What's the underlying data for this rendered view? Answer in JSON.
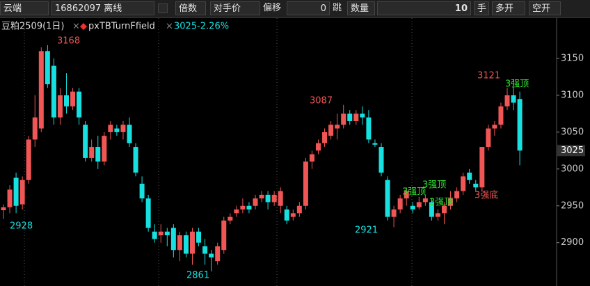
{
  "toolbar": {
    "account": "云端",
    "connection": "16862097 离线",
    "multiple": "倍数",
    "price_mode": "对手价",
    "offset_label": "偏移",
    "offset": "0",
    "offset_unit": "跳",
    "qty_label": "数量",
    "qty": "10",
    "qty_unit": "手",
    "buy_open": "多开",
    "sell_open": "空开"
  },
  "chart_data": {
    "type": "candlestick",
    "symbol": "豆粕2509(1日)",
    "indicator": "pxTBTurnFfield",
    "last_info": "3025-2.26%",
    "current_price": 3025,
    "ylim": [
      2844,
      3201
    ],
    "yticks": [
      2900,
      2950,
      3000,
      3050,
      3100,
      3150
    ],
    "up_color": "#f05656",
    "down_color": "#16e0e0",
    "candles": [
      [
        2944,
        2952,
        2932,
        2948
      ],
      [
        2948,
        2978,
        2940,
        2972
      ],
      [
        2988,
        2995,
        2940,
        2950
      ],
      [
        2952,
        2990,
        2945,
        2985
      ],
      [
        2985,
        3045,
        2980,
        3040
      ],
      [
        3040,
        3100,
        3030,
        3070
      ],
      [
        3055,
        3165,
        3050,
        3160
      ],
      [
        3160,
        3168,
        3110,
        3115
      ],
      [
        3140,
        3150,
        3060,
        3070
      ],
      [
        3070,
        3110,
        3060,
        3100
      ],
      [
        3100,
        3130,
        3075,
        3085
      ],
      [
        3085,
        3110,
        3080,
        3105
      ],
      [
        3105,
        3110,
        3060,
        3070
      ],
      [
        3060,
        3065,
        3010,
        3015
      ],
      [
        3015,
        3040,
        3010,
        3030
      ],
      [
        3030,
        3045,
        3000,
        3010
      ],
      [
        3010,
        3050,
        3005,
        3045
      ],
      [
        3050,
        3065,
        3040,
        3060
      ],
      [
        3055,
        3060,
        3045,
        3050
      ],
      [
        3050,
        3065,
        3040,
        3060
      ],
      [
        3060,
        3070,
        3030,
        3035
      ],
      [
        3030,
        3035,
        2990,
        2995
      ],
      [
        2980,
        2990,
        2955,
        2960
      ],
      [
        2960,
        2965,
        2915,
        2920
      ],
      [
        2915,
        2925,
        2900,
        2905
      ],
      [
        2910,
        2925,
        2900,
        2915
      ],
      [
        2915,
        2920,
        2895,
        2910
      ],
      [
        2920,
        2925,
        2880,
        2890
      ],
      [
        2890,
        2915,
        2875,
        2910
      ],
      [
        2910,
        2915,
        2880,
        2885
      ],
      [
        2885,
        2920,
        2870,
        2915
      ],
      [
        2915,
        2920,
        2895,
        2900
      ],
      [
        2895,
        2905,
        2870,
        2885
      ],
      [
        2885,
        2890,
        2861,
        2880
      ],
      [
        2875,
        2900,
        2870,
        2895
      ],
      [
        2890,
        2935,
        2885,
        2930
      ],
      [
        2930,
        2940,
        2925,
        2935
      ],
      [
        2940,
        2950,
        2935,
        2945
      ],
      [
        2945,
        2960,
        2940,
        2950
      ],
      [
        2950,
        2955,
        2940,
        2945
      ],
      [
        2950,
        2965,
        2945,
        2960
      ],
      [
        2960,
        2970,
        2955,
        2965
      ],
      [
        2965,
        2970,
        2945,
        2955
      ],
      [
        2955,
        2970,
        2950,
        2965
      ],
      [
        2950,
        2975,
        2940,
        2970
      ],
      [
        2945,
        2950,
        2925,
        2930
      ],
      [
        2935,
        2945,
        2930,
        2940
      ],
      [
        2940,
        2955,
        2935,
        2950
      ],
      [
        2950,
        3015,
        2945,
        3010
      ],
      [
        3010,
        3025,
        3000,
        3020
      ],
      [
        3025,
        3040,
        3020,
        3035
      ],
      [
        3035,
        3055,
        3030,
        3050
      ],
      [
        3045,
        3065,
        3040,
        3060
      ],
      [
        3055,
        3075,
        3040,
        3060
      ],
      [
        3060,
        3087,
        3055,
        3075
      ],
      [
        3075,
        3080,
        3060,
        3065
      ],
      [
        3065,
        3080,
        3060,
        3075
      ],
      [
        3075,
        3085,
        3060,
        3070
      ],
      [
        3070,
        3080,
        3035,
        3040
      ],
      [
        3035,
        3040,
        3030,
        3033
      ],
      [
        3030,
        3035,
        2990,
        2995
      ],
      [
        2985,
        2990,
        2930,
        2935
      ],
      [
        2935,
        2950,
        2921,
        2945
      ],
      [
        2945,
        2965,
        2940,
        2960
      ],
      [
        2960,
        2975,
        2950,
        2970
      ],
      [
        2950,
        2955,
        2940,
        2945
      ],
      [
        2948,
        2962,
        2945,
        2955
      ],
      [
        2955,
        2965,
        2950,
        2960
      ],
      [
        2955,
        2960,
        2930,
        2935
      ],
      [
        2935,
        2945,
        2930,
        2940
      ],
      [
        2940,
        2955,
        2925,
        2950
      ],
      [
        2950,
        2970,
        2945,
        2960
      ],
      [
        2960,
        2975,
        2955,
        2970
      ],
      [
        2970,
        2995,
        2965,
        2990
      ],
      [
        2995,
        3000,
        2980,
        2985
      ],
      [
        2980,
        2985,
        2970,
        2975
      ],
      [
        2975,
        3030,
        2970,
        3030
      ],
      [
        3030,
        3060,
        3025,
        3055
      ],
      [
        3055,
        3065,
        3045,
        3060
      ],
      [
        3060,
        3090,
        3055,
        3085
      ],
      [
        3085,
        3110,
        3080,
        3100
      ],
      [
        3100,
        3121,
        3080,
        3090
      ],
      [
        3095,
        3105,
        3005,
        3025
      ]
    ],
    "annotations": [
      {
        "text": "3168"
      },
      {
        "text": "2928"
      },
      {
        "text": "2861"
      },
      {
        "text": "3087"
      },
      {
        "text": "2921"
      },
      {
        "text": "3121"
      },
      {
        "text": "3强顶"
      },
      {
        "text": "3强顶"
      },
      {
        "text": "3强顶"
      },
      {
        "text": "3强顶"
      },
      {
        "text": "3强底"
      }
    ]
  }
}
